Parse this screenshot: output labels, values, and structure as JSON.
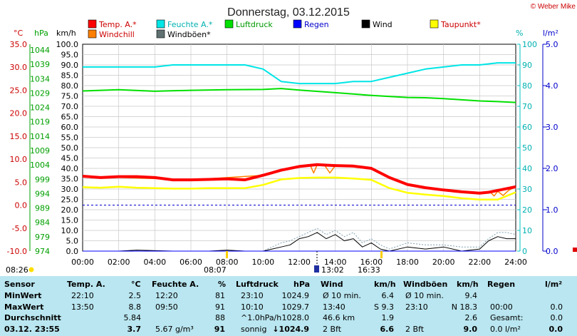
{
  "title": "Donnerstag, 03.12.2015",
  "credit": "© Weber Mike",
  "colors": {
    "temp": "#ff0000",
    "humidity": "#00e5e5",
    "pressure": "#00e000",
    "rain": "#0000ff",
    "wind": "#000000",
    "dew": "#ffff00",
    "windchill": "#ff7f00",
    "gust": "#607070",
    "pressure_axis": "#00a000"
  },
  "legend": [
    {
      "label": "Temp. A.*",
      "color": "#ff0000"
    },
    {
      "label": "Feuchte A.*",
      "color": "#00e5e5"
    },
    {
      "label": "Luftdruck",
      "color": "#00e000"
    },
    {
      "label": "Regen",
      "color": "#0000ff"
    },
    {
      "label": "Wind",
      "color": "#000000"
    },
    {
      "label": "Taupunkt*",
      "color": "#ffff00"
    },
    {
      "label": "Windchill",
      "color": "#ff7f00"
    },
    {
      "label": "Windböen*",
      "color": "#607070"
    }
  ],
  "axis_units": {
    "temp": "°C",
    "pressure": "hPa",
    "wind": "km/h",
    "humidity": "%",
    "rain": "l/m²"
  },
  "axis_ticks": {
    "temp": [
      "35.0",
      "30.0",
      "25.0",
      "20.0",
      "15.0",
      "10.0",
      "5.0",
      "0.0",
      "-5.0",
      "-10.0"
    ],
    "pressure": [
      "1044",
      "1039",
      "1034",
      "1029",
      "1024",
      "1019",
      "1014",
      "1009",
      "1004",
      "999",
      "994",
      "989",
      "984",
      "979",
      "974"
    ],
    "wind": [
      "100.0",
      "95.0",
      "90.0",
      "85.0",
      "80.0",
      "75.0",
      "70.0",
      "65.0",
      "60.0",
      "55.0",
      "50.0",
      "45.0",
      "40.0",
      "35.0",
      "30.0",
      "25.0",
      "20.0",
      "15.0",
      "10.0",
      "5.0",
      "0.0"
    ],
    "humidity": [
      "100",
      "90",
      "80",
      "70",
      "60",
      "50",
      "40",
      "30",
      "20",
      "10",
      "0"
    ],
    "rain": [
      "5.0",
      "4.0",
      "3.0",
      "2.0",
      "1.0",
      "0.0"
    ],
    "time": [
      "00:00",
      "02:00",
      "04:00",
      "06:00",
      "08:00",
      "10:00",
      "12:00",
      "14:00",
      "16:00",
      "18:00",
      "20:00",
      "22:00",
      "24:00"
    ]
  },
  "markers": {
    "sunrise": "08:07",
    "noon": "13:02",
    "sunset": "16:33",
    "moon": "08:26"
  },
  "chart_data": {
    "type": "line",
    "title": "Donnerstag, 03.12.2015",
    "x_unit": "hour",
    "xlim": [
      0,
      24
    ],
    "grid": true,
    "legend_position": "top",
    "series": [
      {
        "name": "Temp. A.*",
        "axis": "temp",
        "ylim": [
          -10,
          35
        ],
        "x": [
          0,
          1,
          2,
          3,
          4,
          5,
          6,
          7,
          8,
          9,
          10,
          11,
          12,
          13,
          13.5,
          14,
          15,
          16,
          17,
          18,
          19,
          20,
          21,
          22,
          22.5,
          23,
          24
        ],
        "y": [
          6.3,
          6.0,
          6.2,
          6.2,
          6.0,
          5.5,
          5.5,
          5.6,
          5.7,
          5.5,
          6.5,
          7.6,
          8.4,
          8.8,
          8.7,
          8.6,
          8.5,
          8.0,
          6.0,
          4.5,
          3.8,
          3.3,
          2.9,
          2.6,
          2.8,
          3.2,
          4.0
        ]
      },
      {
        "name": "Feuchte A.*",
        "axis": "humidity",
        "ylim": [
          0,
          100
        ],
        "x": [
          0,
          1,
          2,
          3,
          4,
          5,
          6,
          7,
          8,
          9,
          10,
          11,
          12,
          13,
          14,
          15,
          16,
          17,
          18,
          19,
          20,
          21,
          22,
          23,
          24
        ],
        "y": [
          89,
          89,
          89,
          89,
          89,
          90,
          90,
          90,
          90,
          90,
          88,
          82,
          81,
          81,
          81,
          82,
          82,
          84,
          86,
          88,
          89,
          90,
          90,
          91,
          91
        ]
      },
      {
        "name": "Luftdruck",
        "axis": "pressure",
        "ylim": [
          974,
          1044
        ],
        "x": [
          0,
          2,
          4,
          6,
          8,
          10,
          11,
          12,
          14,
          16,
          18,
          19,
          20,
          21,
          22,
          23,
          24
        ],
        "y": [
          1028.2,
          1028.6,
          1028.1,
          1028.4,
          1028.6,
          1028.7,
          1029.0,
          1028.5,
          1027.6,
          1026.7,
          1026.0,
          1025.9,
          1025.6,
          1025.2,
          1024.8,
          1024.6,
          1024.3
        ]
      },
      {
        "name": "Taupunkt*",
        "axis": "temp",
        "ylim": [
          -10,
          35
        ],
        "x": [
          0,
          1,
          2,
          3,
          4,
          5,
          6,
          7,
          8,
          9,
          10,
          11,
          12,
          13,
          14,
          15,
          16,
          17,
          18,
          19,
          20,
          21,
          22,
          23,
          24
        ],
        "y": [
          3.9,
          3.8,
          4.0,
          3.8,
          3.7,
          3.6,
          3.6,
          3.7,
          3.7,
          3.7,
          4.4,
          5.6,
          5.9,
          6.0,
          6.0,
          5.8,
          5.5,
          3.7,
          2.7,
          2.3,
          2.0,
          1.5,
          1.2,
          1.2,
          2.8
        ]
      },
      {
        "name": "Windchill",
        "axis": "temp",
        "ylim": [
          -10,
          35
        ],
        "x": [
          0,
          6,
          10,
          12,
          12.6,
          12.8,
          13,
          13.4,
          13.7,
          14,
          16,
          17,
          18,
          20,
          22,
          22.6,
          22.8,
          23,
          23.3,
          23.6,
          24
        ],
        "y": [
          6.3,
          5.5,
          6.5,
          8.4,
          8.8,
          7.0,
          8.8,
          8.7,
          7.0,
          8.6,
          8.0,
          6.0,
          4.5,
          3.3,
          2.6,
          2.8,
          2.0,
          3.0,
          2.1,
          3.2,
          4.0
        ]
      },
      {
        "name": "Wind",
        "axis": "wind",
        "ylim": [
          0,
          100
        ],
        "x": [
          0,
          2,
          3,
          5,
          7,
          8,
          9,
          10,
          10.5,
          11,
          11.5,
          12,
          12.5,
          13,
          13.5,
          14,
          14.5,
          15,
          15.5,
          16,
          16.5,
          17,
          18,
          19,
          20,
          21,
          22,
          22.5,
          23,
          23.5,
          24
        ],
        "y": [
          0,
          0,
          0.5,
          0,
          0,
          0.5,
          0,
          0,
          1,
          2,
          3,
          6,
          7,
          9,
          6,
          8,
          5,
          6,
          2,
          4,
          1,
          0,
          2,
          1,
          2,
          0,
          1,
          5,
          7,
          6,
          6
        ]
      },
      {
        "name": "Windböen*",
        "axis": "wind",
        "ylim": [
          0,
          100
        ],
        "x": [
          0,
          4,
          8,
          10,
          11,
          11.5,
          12,
          12.5,
          13,
          13.5,
          14,
          14.5,
          15,
          15.5,
          16,
          16.5,
          17,
          18,
          19,
          20,
          21,
          22,
          22.5,
          23,
          23.5,
          24
        ],
        "y": [
          0,
          0,
          0,
          0,
          4,
          5,
          7,
          9,
          11,
          8,
          10,
          7,
          9,
          4,
          6,
          3,
          1,
          4,
          3,
          3,
          2,
          2,
          6,
          9,
          9,
          8
        ]
      },
      {
        "name": "Regen",
        "axis": "rain",
        "ylim": [
          0,
          5
        ],
        "x": [
          0,
          24
        ],
        "y": [
          0,
          0
        ]
      }
    ]
  },
  "table": {
    "headers": {
      "sensor": "Sensor",
      "temp": "Temp. A.",
      "temp_u": "°C",
      "hum": "Feuchte A.",
      "hum_u": "%",
      "press": "Luftdruck",
      "press_u": "hPa",
      "wind": "Wind",
      "wind_u": "km/h",
      "gust": "Windböen",
      "gust_u": "km/h",
      "rain": "Regen",
      "rain_u": "l/m²"
    },
    "rows": {
      "min": {
        "label": "MinWert",
        "temp_t": "22:10",
        "temp_v": "2.5",
        "hum_t": "12:20",
        "hum_v": "81",
        "press_t": "23:10",
        "press_v": "1024.9",
        "wind_t": "Ø 10 min.",
        "wind_v": "6.4",
        "gust_t": "Ø 10 min.",
        "gust_v": "9.4",
        "rain_t": "",
        "rain_v": ""
      },
      "max": {
        "label": "MaxWert",
        "temp_t": "13:50",
        "temp_v": "8.8",
        "hum_t": "09:50",
        "hum_v": "91",
        "press_t": "10:10",
        "press_v": "1029.7",
        "wind_t": "13:40",
        "wind_v": "S 9.3",
        "gust_t": "23:10",
        "gust_v": "N 18.3",
        "rain_t": "00:00",
        "rain_v": "0.0"
      },
      "avg": {
        "label": "Durchschnitt",
        "temp_t": "",
        "temp_v": "5.84",
        "hum_t": "",
        "hum_v": "88",
        "press_t": "^1.0hPa/h",
        "press_v": "1028.0",
        "wind_t": "46.6 km",
        "wind_v": "1.9",
        "gust_t": "",
        "gust_v": "2.6",
        "rain_t": "Gesamt:",
        "rain_v": "0.0"
      },
      "cur": {
        "label": "03.12. 23:55",
        "temp_t": "",
        "temp_v": "3.7",
        "hum_t": "5.67 g/m³",
        "hum_v": "91",
        "press_t": "sonnig",
        "press_v": "↓1024.9",
        "wind_t": "2 Bft",
        "wind_v": "6.6",
        "gust_t": "2 Bft",
        "gust_v": "9.0",
        "rain_t": "0.0 l/m²",
        "rain_v": "0.0"
      }
    }
  }
}
